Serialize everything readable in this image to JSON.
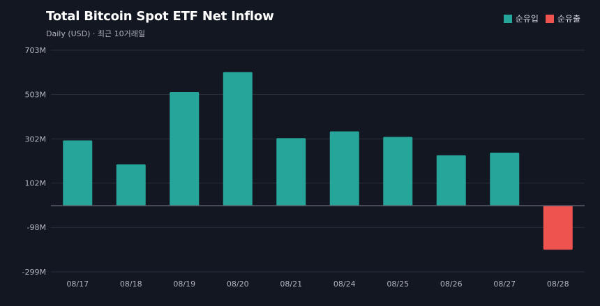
{
  "title": "Total Bitcoin Spot ETF Net Inflow",
  "subtitle": "Daily (USD) · 최근 10거래일",
  "legend": {
    "inflow_label": "순유입",
    "outflow_label": "순유출",
    "inflow_color": "#26a69a",
    "outflow_color": "#ef5350"
  },
  "chart_data": {
    "type": "bar",
    "categories": [
      "08/17",
      "08/18",
      "08/19",
      "08/20",
      "08/21",
      "08/24",
      "08/25",
      "08/26",
      "08/27",
      "08/28"
    ],
    "values": [
      295,
      187,
      514,
      604,
      305,
      336,
      311,
      228,
      240,
      -199
    ],
    "y_ticks": [
      703,
      503,
      302,
      102,
      -98,
      -299
    ],
    "y_tick_labels": [
      "703M",
      "503M",
      "302M",
      "102M",
      "-98M",
      "-299M"
    ],
    "ylim": [
      -299,
      703
    ],
    "grid": true,
    "legend_position": "top-right"
  }
}
